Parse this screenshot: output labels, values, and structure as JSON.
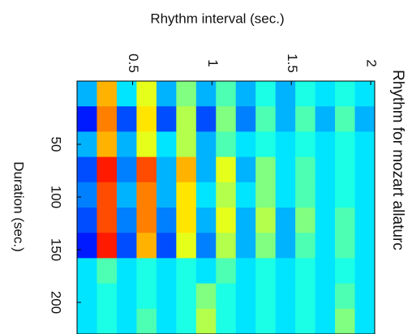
{
  "chart_data": {
    "type": "heatmap",
    "title": "Rhythm for mozart allaturc",
    "x_label": "Rhythm interval (sec.)",
    "y_label": "Duration (sec.)",
    "xlim": [
      0.15,
      2.025
    ],
    "ylim": [
      -10,
      230
    ],
    "xticks": [
      0.5,
      1,
      1.5,
      2
    ],
    "yticks": [
      50,
      100,
      150,
      200
    ],
    "x_bins": [
      0.15,
      0.275,
      0.4,
      0.525,
      0.65,
      0.775,
      0.9,
      1.025,
      1.15,
      1.275,
      1.4,
      1.525,
      1.65,
      1.775,
      1.9,
      2.025
    ],
    "y_bins": [
      -10,
      14,
      38,
      62,
      86,
      110,
      134,
      158,
      182,
      206,
      230
    ],
    "clim": [
      0,
      1
    ],
    "colormap": "jet",
    "values": [
      [
        0.3,
        0.7,
        0.35,
        0.6,
        0.3,
        0.5,
        0.3,
        0.45,
        0.3,
        0.4,
        0.3,
        0.4,
        0.35,
        0.4,
        0.35
      ],
      [
        0.15,
        0.75,
        0.2,
        0.65,
        0.2,
        0.55,
        0.2,
        0.5,
        0.25,
        0.45,
        0.3,
        0.45,
        0.3,
        0.45,
        0.3
      ],
      [
        0.3,
        0.7,
        0.3,
        0.6,
        0.35,
        0.55,
        0.3,
        0.45,
        0.35,
        0.4,
        0.35,
        0.4,
        0.35,
        0.4,
        0.35
      ],
      [
        0.2,
        0.85,
        0.25,
        0.8,
        0.3,
        0.7,
        0.3,
        0.6,
        0.3,
        0.5,
        0.35,
        0.45,
        0.35,
        0.4,
        0.35
      ],
      [
        0.25,
        0.8,
        0.3,
        0.75,
        0.3,
        0.65,
        0.35,
        0.55,
        0.35,
        0.5,
        0.35,
        0.45,
        0.35,
        0.4,
        0.35
      ],
      [
        0.2,
        0.8,
        0.25,
        0.75,
        0.25,
        0.65,
        0.3,
        0.6,
        0.3,
        0.55,
        0.3,
        0.5,
        0.35,
        0.45,
        0.35
      ],
      [
        0.15,
        0.85,
        0.2,
        0.7,
        0.2,
        0.6,
        0.25,
        0.55,
        0.3,
        0.5,
        0.3,
        0.45,
        0.35,
        0.45,
        0.35
      ],
      [
        0.35,
        0.45,
        0.35,
        0.4,
        0.35,
        0.4,
        0.35,
        0.45,
        0.35,
        0.4,
        0.35,
        0.4,
        0.35,
        0.4,
        0.35
      ],
      [
        0.35,
        0.4,
        0.35,
        0.4,
        0.35,
        0.4,
        0.5,
        0.4,
        0.35,
        0.4,
        0.35,
        0.4,
        0.35,
        0.45,
        0.35
      ],
      [
        0.35,
        0.4,
        0.35,
        0.45,
        0.35,
        0.4,
        0.55,
        0.4,
        0.35,
        0.4,
        0.35,
        0.4,
        0.35,
        0.5,
        0.35
      ]
    ]
  }
}
